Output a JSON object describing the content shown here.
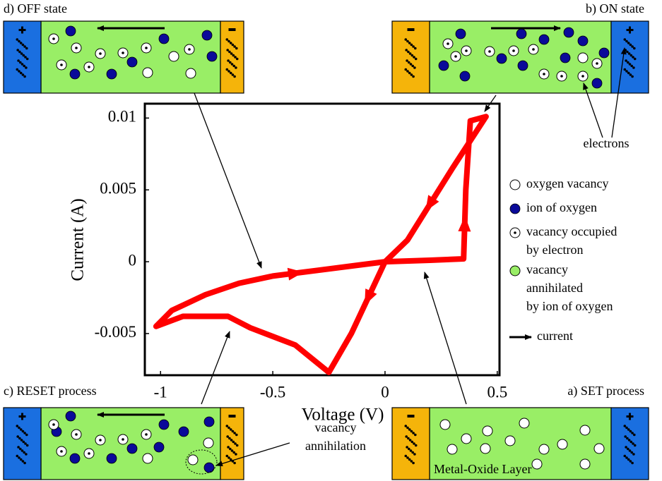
{
  "chart_data": {
    "type": "line",
    "xlabel": "Voltage (V)",
    "ylabel": "Current (A)",
    "x": [
      -1.02,
      -0.95,
      -0.8,
      -0.65,
      -0.5,
      -0.3,
      0,
      0.2,
      0.35,
      0.36,
      0.38,
      0.45,
      0.3,
      0.1,
      0,
      -0.15,
      -0.25,
      -0.4,
      -0.6,
      -0.7,
      -0.9,
      -1.02
    ],
    "series": [
      {
        "color": "#ff0000",
        "values": [
          -0.0045,
          -0.0034,
          -0.0023,
          -0.0015,
          -0.001,
          -0.0006,
          0,
          0.0001,
          0.0002,
          0.005,
          0.0098,
          0.0101,
          0.0065,
          0.0015,
          0,
          -0.005,
          -0.0077,
          -0.0058,
          -0.0046,
          -0.0038,
          -0.0038,
          -0.0045
        ]
      }
    ],
    "xlim": [
      -1.07,
      0.51
    ],
    "ylim": [
      -0.0079,
      0.011
    ],
    "xticks": [
      -1,
      -0.5,
      0,
      0.5
    ],
    "yticks": [
      -0.005,
      0,
      0.005,
      0.01
    ]
  },
  "panels": [
    {
      "label": "d) OFF state"
    },
    {
      "label": "b) ON state"
    },
    {
      "label": "c) RESET process"
    },
    {
      "label": "a) SET process"
    }
  ],
  "annotations": {
    "electrons": "electrons",
    "vacancy_annihilation": [
      "vacancy",
      "annihilation"
    ],
    "layer": "Metal-Oxide Layer"
  },
  "legend": [
    {
      "lines": [
        "oxygen vacancy"
      ]
    },
    {
      "lines": [
        "ion of oxygen"
      ]
    },
    {
      "lines": [
        "vacancy occupied",
        "by electron"
      ]
    },
    {
      "lines": [
        "vacancy",
        "annihilated",
        "by ion of oxygen"
      ]
    },
    {
      "lines": [
        "current"
      ]
    }
  ]
}
